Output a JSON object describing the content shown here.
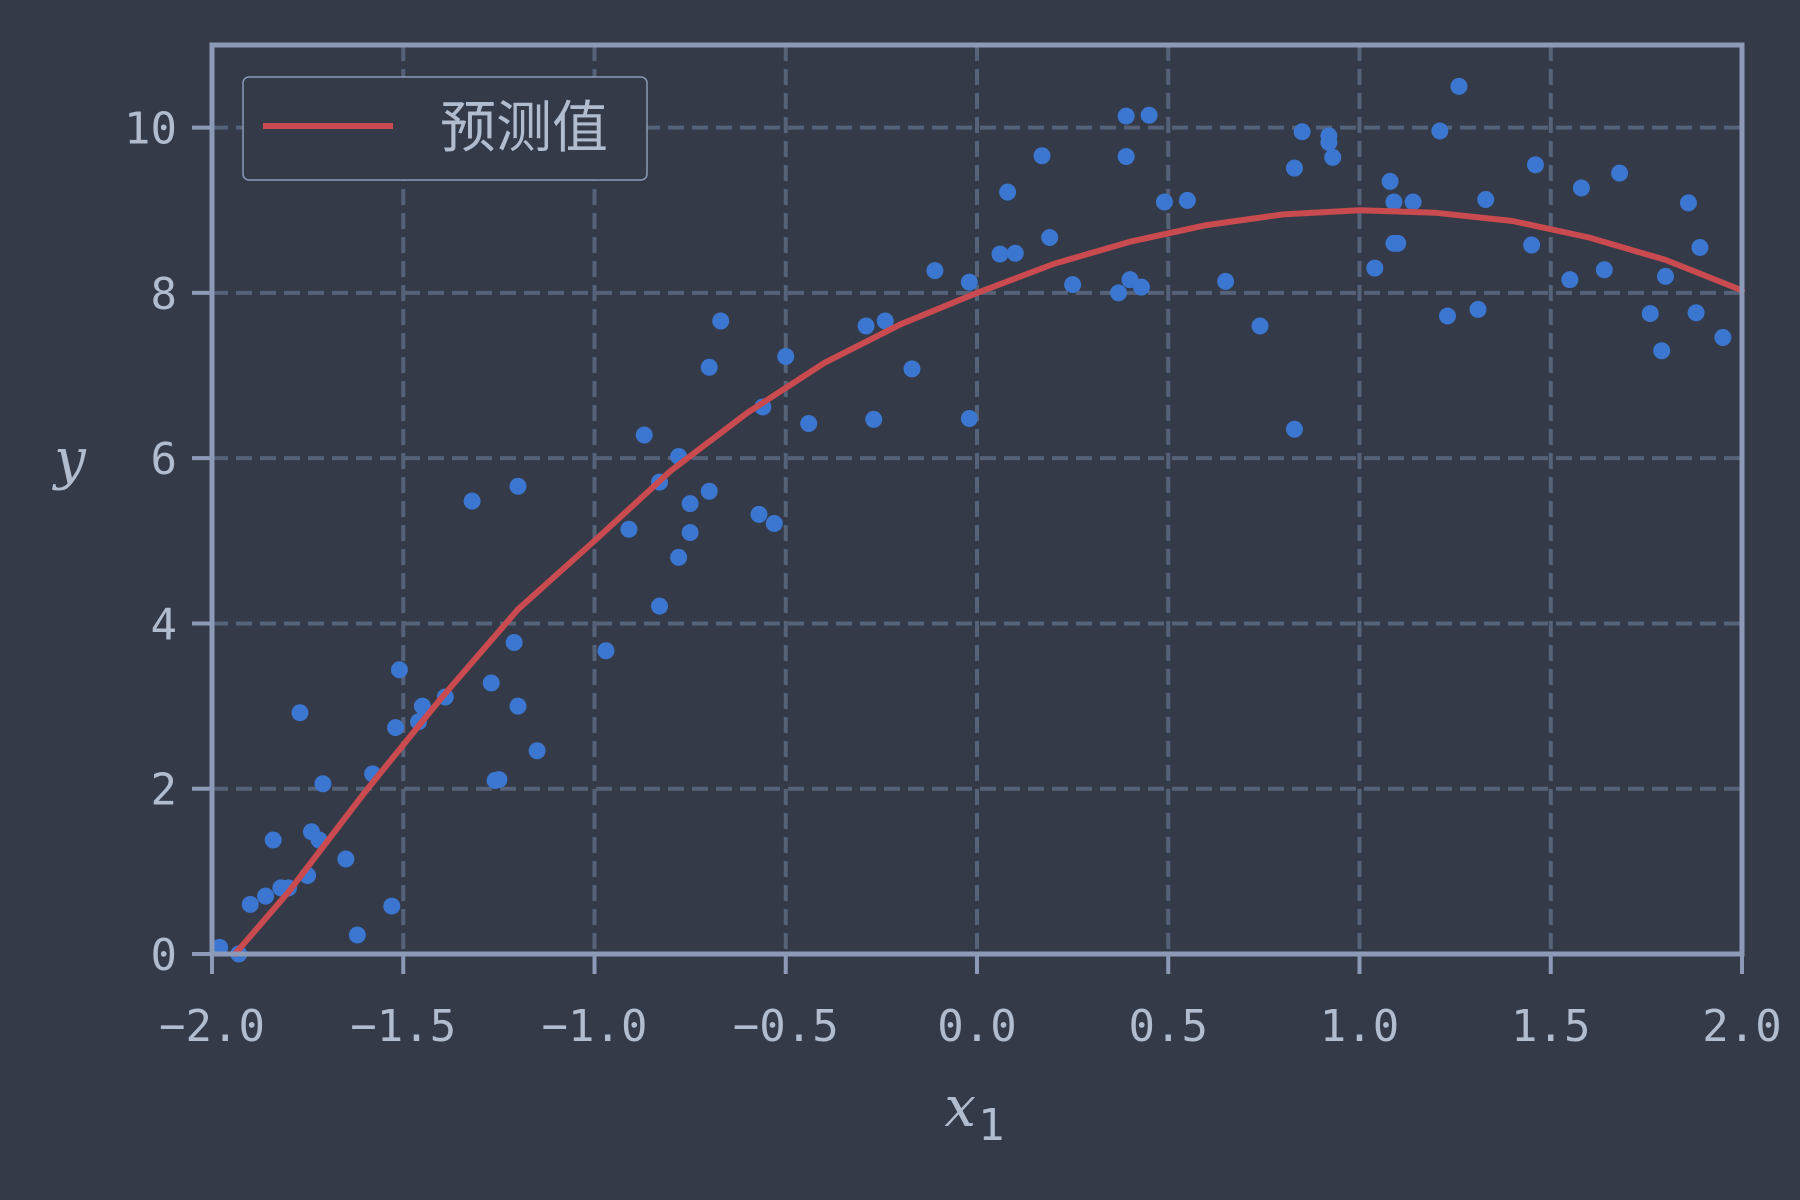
{
  "chart_data": {
    "type": "scatter",
    "title": "",
    "xlabel": "x",
    "xlabel_sub": "1",
    "ylabel": "y",
    "xlim": [
      -2.0,
      2.0
    ],
    "ylim": [
      0,
      11
    ],
    "xticks": [
      -2.0,
      -1.5,
      -1.0,
      -0.5,
      0.0,
      0.5,
      1.0,
      1.5,
      2.0
    ],
    "xtick_labels": [
      "−2.0",
      "−1.5",
      "−1.0",
      "−0.5",
      "0.0",
      "0.5",
      "1.0",
      "1.5",
      "2.0"
    ],
    "yticks": [
      0,
      2,
      4,
      6,
      8,
      10
    ],
    "ytick_labels": [
      "0",
      "2",
      "4",
      "6",
      "8",
      "10"
    ],
    "grid": true,
    "legend": {
      "position": "top-left",
      "entries": [
        "预测值"
      ]
    },
    "colors": {
      "background": "#343a47",
      "frame": "#8c9ab8",
      "grid": "#566278",
      "points": "#3b76d0",
      "line": "#c94a4f",
      "text": "#b2bccf"
    },
    "series": [
      {
        "name": "预测值",
        "type": "line",
        "x": [
          -1.94,
          -1.8,
          -1.6,
          -1.4,
          -1.2,
          -1.0,
          -0.8,
          -0.6,
          -0.4,
          -0.2,
          0.0,
          0.2,
          0.4,
          0.6,
          0.8,
          1.0,
          1.2,
          1.4,
          1.6,
          1.8,
          2.0
        ],
        "y": [
          0.0,
          0.75,
          1.96,
          3.1,
          4.17,
          5.0,
          5.85,
          6.55,
          7.15,
          7.62,
          8.0,
          8.35,
          8.62,
          8.82,
          8.95,
          9.0,
          8.97,
          8.87,
          8.67,
          8.4,
          8.03
        ]
      },
      {
        "type": "scatter",
        "x": [
          -1.98,
          -1.93,
          -1.9,
          -1.86,
          -1.84,
          -1.82,
          -1.8,
          -1.77,
          -1.75,
          -1.74,
          -1.72,
          -1.71,
          -1.65,
          -1.62,
          -1.58,
          -1.53,
          -1.52,
          -1.51,
          -1.46,
          -1.45,
          -1.39,
          -1.32,
          -1.27,
          -1.26,
          -1.25,
          -1.21,
          -1.2,
          -1.2,
          -1.15,
          -0.97,
          -0.91,
          -0.87,
          -0.83,
          -0.83,
          -0.78,
          -0.78,
          -0.75,
          -0.75,
          -0.7,
          -0.7,
          -0.67,
          -0.57,
          -0.56,
          -0.53,
          -0.5,
          -0.44,
          -0.29,
          -0.27,
          -0.24,
          -0.17,
          -0.11,
          -0.02,
          -0.02,
          0.06,
          0.08,
          0.1,
          0.17,
          0.19,
          0.25,
          0.37,
          0.39,
          0.39,
          0.4,
          0.43,
          0.45,
          0.49,
          0.55,
          0.65,
          0.74,
          0.83,
          0.83,
          0.85,
          0.92,
          0.92,
          0.93,
          1.04,
          1.08,
          1.09,
          1.09,
          1.1,
          1.14,
          1.21,
          1.23,
          1.26,
          1.31,
          1.33,
          1.45,
          1.46,
          1.55,
          1.58,
          1.64,
          1.68,
          1.76,
          1.79,
          1.8,
          1.86,
          1.88,
          1.89,
          1.95
        ],
        "y": [
          0.08,
          0.0,
          0.6,
          0.7,
          1.38,
          0.8,
          0.8,
          2.92,
          0.95,
          1.48,
          1.38,
          2.06,
          1.15,
          0.23,
          2.18,
          0.58,
          2.74,
          3.44,
          2.81,
          3.0,
          3.11,
          5.48,
          3.28,
          2.1,
          2.11,
          3.77,
          5.66,
          3.0,
          2.46,
          3.67,
          5.14,
          6.28,
          5.71,
          4.21,
          6.02,
          4.8,
          5.45,
          5.1,
          5.6,
          7.1,
          7.66,
          5.32,
          6.62,
          5.21,
          7.23,
          6.42,
          7.6,
          6.47,
          7.66,
          7.08,
          8.27,
          6.48,
          8.13,
          8.47,
          9.22,
          8.48,
          9.66,
          8.67,
          8.1,
          8.0,
          10.14,
          9.65,
          8.16,
          8.07,
          10.15,
          9.1,
          9.12,
          8.14,
          7.6,
          9.51,
          6.35,
          9.95,
          9.9,
          9.82,
          9.64,
          8.3,
          9.35,
          8.6,
          9.1,
          8.6,
          9.1,
          9.96,
          7.72,
          10.5,
          7.8,
          9.13,
          8.58,
          9.55,
          8.16,
          9.27,
          8.28,
          9.45,
          7.75,
          7.3,
          8.2,
          9.09,
          7.76,
          8.55,
          7.46
        ]
      }
    ]
  }
}
